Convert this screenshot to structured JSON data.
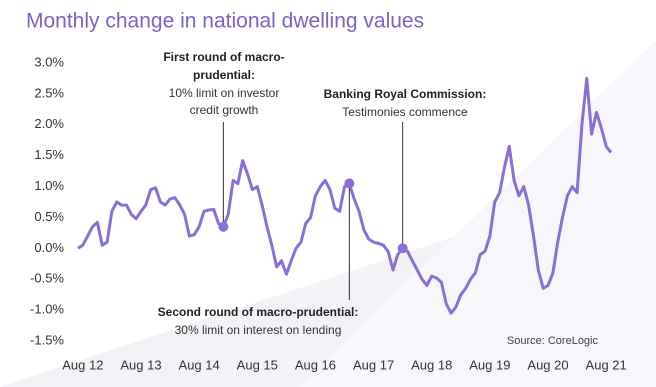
{
  "chart_data": {
    "type": "line",
    "title": "Monthly change in national dwelling values",
    "source": "Source: CoreLogic",
    "categories": [
      null,
      "Aug 12",
      null,
      null,
      null,
      null,
      null,
      null,
      null,
      null,
      null,
      null,
      null,
      "Aug 13",
      null,
      null,
      null,
      null,
      null,
      null,
      null,
      null,
      null,
      null,
      null,
      "Aug 14",
      null,
      null,
      null,
      null,
      null,
      null,
      null,
      null,
      null,
      null,
      null,
      "Aug 15",
      null,
      null,
      null,
      null,
      null,
      null,
      null,
      null,
      null,
      null,
      null,
      "Aug 16",
      null,
      null,
      null,
      null,
      null,
      null,
      null,
      null,
      null,
      null,
      null,
      "Aug 17",
      null,
      null,
      null,
      null,
      null,
      null,
      null,
      null,
      null,
      null,
      null,
      "Aug 18",
      null,
      null,
      null,
      null,
      null,
      null,
      null,
      null,
      null,
      null,
      null,
      "Aug 19",
      null,
      null,
      null,
      null,
      null,
      null,
      null,
      null,
      null,
      null,
      null,
      "Aug 20",
      null,
      null,
      null,
      null,
      null,
      null,
      null,
      null,
      null,
      null,
      null,
      "Aug 21",
      null
    ],
    "values": [
      0.0,
      0.05,
      0.2,
      0.35,
      0.42,
      0.05,
      0.1,
      0.6,
      0.75,
      0.7,
      0.7,
      0.55,
      0.48,
      0.6,
      0.7,
      0.95,
      0.98,
      0.75,
      0.7,
      0.8,
      0.82,
      0.7,
      0.55,
      0.2,
      0.22,
      0.35,
      0.6,
      0.62,
      0.63,
      0.4,
      0.35,
      0.55,
      1.1,
      1.05,
      1.42,
      1.2,
      0.95,
      1.0,
      0.7,
      0.35,
      0.05,
      -0.3,
      -0.2,
      -0.42,
      -0.2,
      0.0,
      0.1,
      0.4,
      0.5,
      0.85,
      1.0,
      1.1,
      0.95,
      0.65,
      0.6,
      1.0,
      1.05,
      0.8,
      0.6,
      0.3,
      0.15,
      0.1,
      0.08,
      0.05,
      -0.05,
      -0.35,
      -0.1,
      0.0,
      -0.05,
      -0.2,
      -0.35,
      -0.5,
      -0.6,
      -0.45,
      -0.48,
      -0.55,
      -0.9,
      -1.05,
      -0.95,
      -0.75,
      -0.65,
      -0.5,
      -0.4,
      -0.1,
      -0.05,
      0.2,
      0.75,
      0.9,
      1.3,
      1.65,
      1.1,
      0.85,
      1.0,
      0.7,
      0.2,
      -0.35,
      -0.65,
      -0.6,
      -0.4,
      0.1,
      0.5,
      0.85,
      1.0,
      0.9,
      2.0,
      2.75,
      1.85,
      2.2,
      1.95,
      1.65,
      1.55
    ],
    "color": "#8a6fd6",
    "ylim": [
      -1.5,
      3.0
    ],
    "yticks": [
      {
        "value": -1.5,
        "label": "-1.5%"
      },
      {
        "value": -1.0,
        "label": "-1.0%"
      },
      {
        "value": -0.5,
        "label": "-0.5%"
      },
      {
        "value": 0.0,
        "label": "0.0%"
      },
      {
        "value": 0.5,
        "label": "0.5%"
      },
      {
        "value": 1.0,
        "label": "1.0%"
      },
      {
        "value": 1.5,
        "label": "1.5%"
      },
      {
        "value": 2.0,
        "label": "2.0%"
      },
      {
        "value": 2.5,
        "label": "2.5%"
      },
      {
        "value": 3.0,
        "label": "3.0%"
      }
    ],
    "annotations": [
      {
        "title": [
          "First round of macro-",
          "prudential:"
        ],
        "body": [
          "10% limit on investor",
          "credit growth"
        ]
      },
      {
        "title": [
          "Banking Royal Commission:"
        ],
        "body": [
          "Testimonies commence"
        ]
      },
      {
        "title": [
          "Second round of macro-prudential:"
        ],
        "body": [
          "30% limit on interest on lending"
        ]
      }
    ]
  }
}
